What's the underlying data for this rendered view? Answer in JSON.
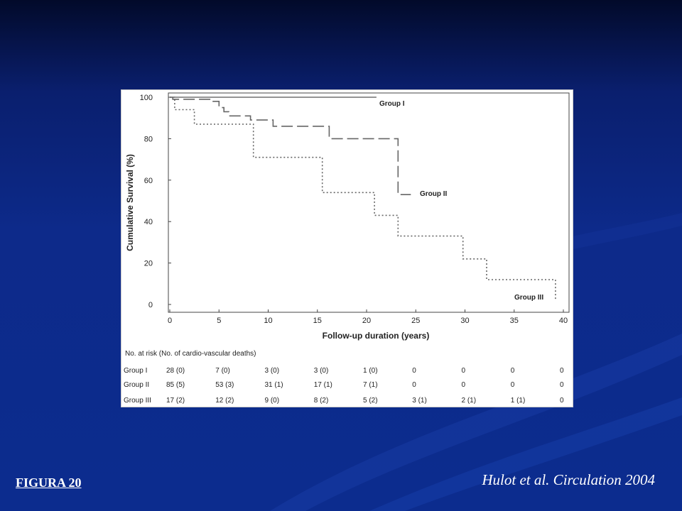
{
  "slide": {
    "figure_label": "FIGURA 20",
    "citation": "Hulot et al. Circulation 2004"
  },
  "chart_data": {
    "type": "line",
    "xlabel": "Follow-up duration (years)",
    "ylabel": "Cumulative Survival (%)",
    "xlim": [
      0,
      40
    ],
    "ylim": [
      0,
      100
    ],
    "x_ticks": [
      0,
      5,
      10,
      15,
      20,
      25,
      30,
      35,
      40
    ],
    "y_ticks": [
      0,
      20,
      40,
      60,
      80,
      100
    ],
    "grid": false,
    "series": [
      {
        "name": "Group I",
        "style": "solid",
        "points": [
          [
            0,
            100
          ],
          [
            21,
            100
          ]
        ]
      },
      {
        "name": "Group II",
        "style": "dashed",
        "points": [
          [
            0,
            100
          ],
          [
            0.3,
            99
          ],
          [
            3.5,
            99
          ],
          [
            4.2,
            98
          ],
          [
            5,
            95
          ],
          [
            5.5,
            93
          ],
          [
            6,
            91
          ],
          [
            8,
            91
          ],
          [
            8.2,
            89
          ],
          [
            10,
            89
          ],
          [
            10.5,
            86
          ],
          [
            16,
            86
          ],
          [
            16.2,
            80
          ],
          [
            23,
            80
          ],
          [
            23.2,
            53
          ],
          [
            24.5,
            53
          ]
        ]
      },
      {
        "name": "Group III",
        "style": "dotted",
        "points": [
          [
            0,
            100
          ],
          [
            0.5,
            94
          ],
          [
            2.3,
            94
          ],
          [
            2.5,
            87
          ],
          [
            8,
            87
          ],
          [
            8.5,
            71
          ],
          [
            15,
            71
          ],
          [
            15.5,
            54
          ],
          [
            20.5,
            54
          ],
          [
            20.8,
            43
          ],
          [
            23,
            43
          ],
          [
            23.2,
            33
          ],
          [
            29.5,
            33
          ],
          [
            29.8,
            22
          ],
          [
            32,
            22
          ],
          [
            32.2,
            12
          ],
          [
            39,
            12
          ],
          [
            39.2,
            2
          ]
        ]
      }
    ],
    "risk_table": {
      "header": "No. at risk (No. of cardio-vascular deaths)",
      "rows": [
        {
          "group": "Group I",
          "values": [
            "28 (0)",
            "7 (0)",
            "3 (0)",
            "3 (0)",
            "1 (0)",
            "0",
            "0",
            "0",
            "0"
          ]
        },
        {
          "group": "Group II",
          "values": [
            "85 (5)",
            "53 (3)",
            "31 (1)",
            "17 (1)",
            "7 (1)",
            "0",
            "0",
            "0",
            "0"
          ]
        },
        {
          "group": "Group III",
          "values": [
            "17 (2)",
            "12 (2)",
            "9 (0)",
            "8 (2)",
            "5 (2)",
            "3 (1)",
            "2 (1)",
            "1 (1)",
            "0"
          ]
        }
      ]
    }
  }
}
